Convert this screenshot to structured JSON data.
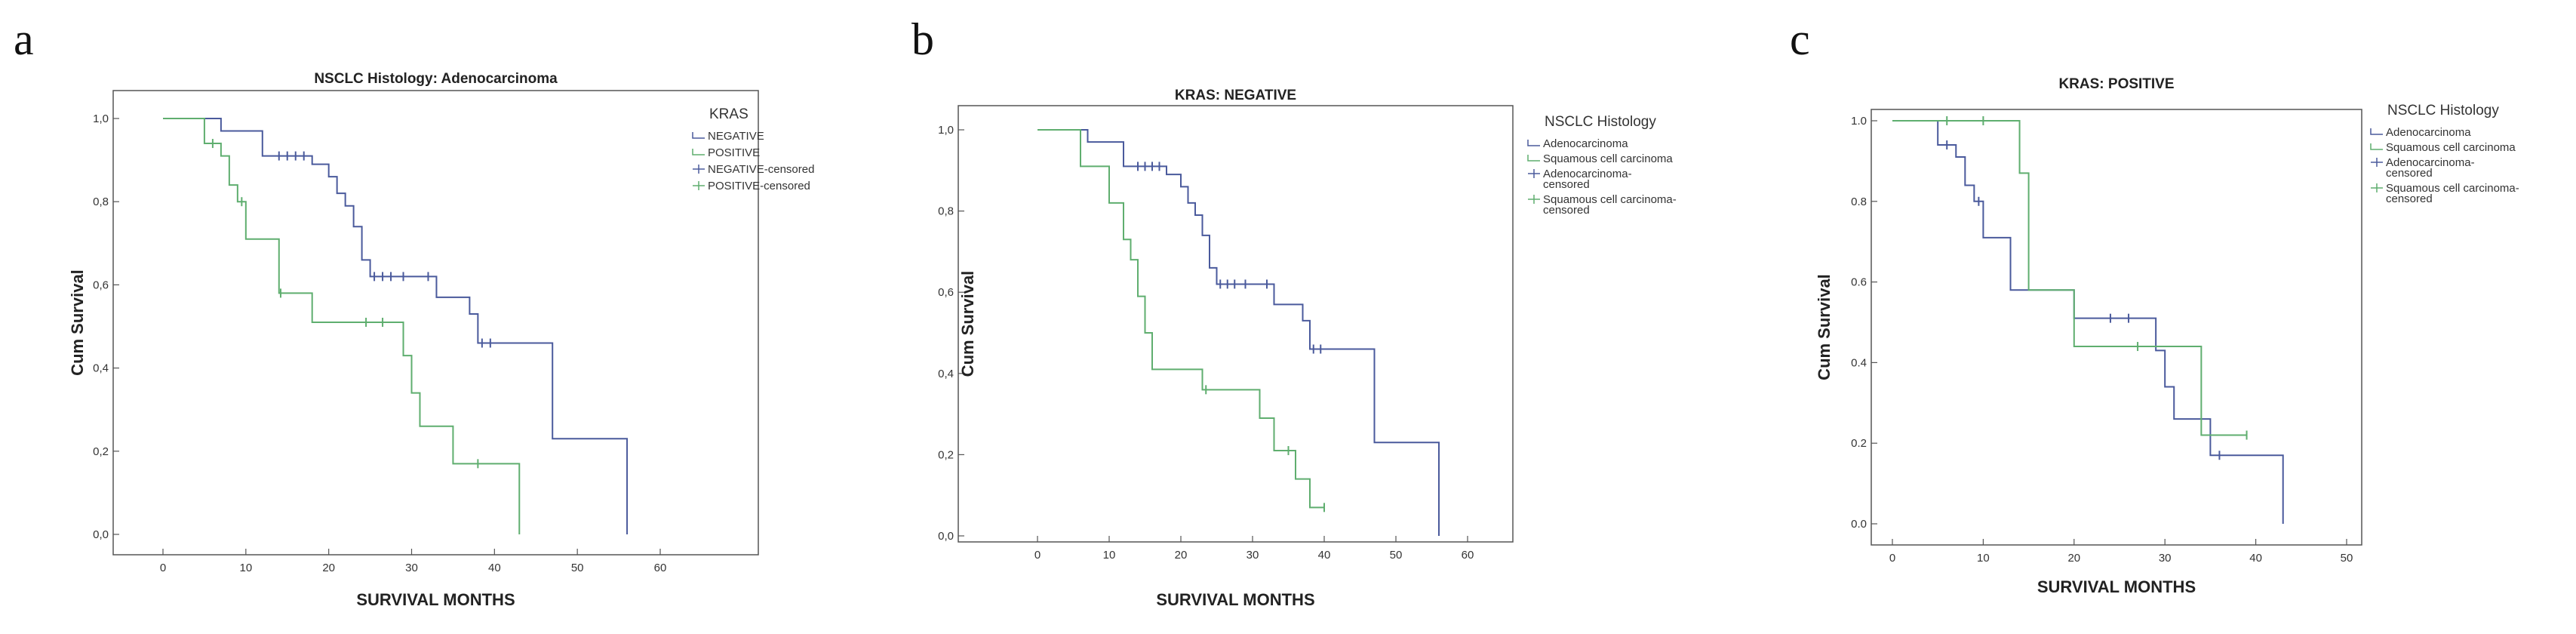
{
  "figure": {
    "panel_letters": [
      "a",
      "b",
      "c"
    ]
  },
  "colors": {
    "blue": "#4a5a9c",
    "green": "#5fae6f"
  },
  "chart_data": [
    {
      "type": "line",
      "title": "NSCLC Histology: Adenocarcinoma",
      "xlabel": "SURVIVAL MONTHS",
      "ylabel": "Cum Survival",
      "xlim": [
        0,
        60
      ],
      "ylim": [
        0,
        1
      ],
      "xticks": [
        "0",
        "10",
        "20",
        "30",
        "40",
        "50",
        "60"
      ],
      "yticks": [
        "0,0",
        "0,2",
        "0,4",
        "0,6",
        "0,8",
        "1,0"
      ],
      "legend_title": "KRAS",
      "legend_placement": "top-right",
      "legend_entries": [
        "NEGATIVE",
        "POSITIVE",
        "NEGATIVE-censored",
        "POSITIVE-censored"
      ],
      "series": [
        {
          "name": "NEGATIVE",
          "color": "blue",
          "steps": [
            [
              0,
              1.0
            ],
            [
              7,
              0.97
            ],
            [
              12,
              0.91
            ],
            [
              18,
              0.89
            ],
            [
              20,
              0.86
            ],
            [
              21,
              0.82
            ],
            [
              22,
              0.79
            ],
            [
              23,
              0.74
            ],
            [
              24,
              0.66
            ],
            [
              25,
              0.62
            ],
            [
              33,
              0.57
            ],
            [
              37,
              0.53
            ],
            [
              38,
              0.46
            ],
            [
              47,
              0.23
            ],
            [
              56,
              0.0
            ]
          ],
          "censored": [
            [
              14,
              0.91
            ],
            [
              15,
              0.91
            ],
            [
              16,
              0.91
            ],
            [
              17,
              0.91
            ],
            [
              25.5,
              0.62
            ],
            [
              26.5,
              0.62
            ],
            [
              27.5,
              0.62
            ],
            [
              29,
              0.62
            ],
            [
              32,
              0.62
            ],
            [
              38.5,
              0.46
            ],
            [
              39.5,
              0.46
            ]
          ]
        },
        {
          "name": "POSITIVE",
          "color": "green",
          "steps": [
            [
              0,
              1.0
            ],
            [
              5,
              0.94
            ],
            [
              7,
              0.91
            ],
            [
              8,
              0.84
            ],
            [
              9,
              0.8
            ],
            [
              10,
              0.71
            ],
            [
              14,
              0.58
            ],
            [
              18,
              0.51
            ],
            [
              24,
              0.51
            ],
            [
              29,
              0.43
            ],
            [
              30,
              0.34
            ],
            [
              31,
              0.26
            ],
            [
              35,
              0.17
            ],
            [
              38,
              0.17
            ],
            [
              43,
              0.0
            ]
          ],
          "censored": [
            [
              6,
              0.94
            ],
            [
              9.5,
              0.8
            ],
            [
              14.2,
              0.58
            ],
            [
              24.5,
              0.51
            ],
            [
              26.5,
              0.51
            ],
            [
              38,
              0.17
            ]
          ]
        }
      ]
    },
    {
      "type": "line",
      "title": "KRAS: NEGATIVE",
      "xlabel": "SURVIVAL MONTHS",
      "ylabel": "Cum Survival",
      "xlim": [
        0,
        60
      ],
      "ylim": [
        0,
        1
      ],
      "xticks": [
        "0",
        "10",
        "20",
        "30",
        "40",
        "50",
        "60"
      ],
      "yticks": [
        "0,0",
        "0,2",
        "0,4",
        "0,6",
        "0,8",
        "1,0"
      ],
      "legend_title": "NSCLC Histology",
      "legend_placement": "top-right",
      "legend_entries": [
        [
          "Adenocarcinoma"
        ],
        [
          "Squamous cell carcinoma"
        ],
        [
          "Adenocarcinoma-",
          "censored"
        ],
        [
          "Squamous cell carcinoma-",
          "censored"
        ]
      ],
      "series": [
        {
          "name": "Adenocarcinoma",
          "color": "blue",
          "steps": [
            [
              0,
              1.0
            ],
            [
              7,
              0.97
            ],
            [
              12,
              0.91
            ],
            [
              18,
              0.89
            ],
            [
              20,
              0.86
            ],
            [
              21,
              0.82
            ],
            [
              22,
              0.79
            ],
            [
              23,
              0.74
            ],
            [
              24,
              0.66
            ],
            [
              25,
              0.62
            ],
            [
              33,
              0.57
            ],
            [
              37,
              0.53
            ],
            [
              38,
              0.46
            ],
            [
              47,
              0.23
            ],
            [
              56,
              0.0
            ]
          ],
          "censored": [
            [
              14,
              0.91
            ],
            [
              15,
              0.91
            ],
            [
              16,
              0.91
            ],
            [
              17,
              0.91
            ],
            [
              25.5,
              0.62
            ],
            [
              26.5,
              0.62
            ],
            [
              27.5,
              0.62
            ],
            [
              29,
              0.62
            ],
            [
              32,
              0.62
            ],
            [
              38.5,
              0.46
            ],
            [
              39.5,
              0.46
            ]
          ]
        },
        {
          "name": "Squamous cell carcinoma",
          "color": "green",
          "steps": [
            [
              0,
              1.0
            ],
            [
              6,
              0.91
            ],
            [
              10,
              0.82
            ],
            [
              12,
              0.73
            ],
            [
              13,
              0.68
            ],
            [
              14,
              0.59
            ],
            [
              15,
              0.5
            ],
            [
              16,
              0.41
            ],
            [
              23,
              0.36
            ],
            [
              31,
              0.29
            ],
            [
              33,
              0.21
            ],
            [
              36,
              0.14
            ],
            [
              38,
              0.07
            ],
            [
              40,
              0.07
            ]
          ],
          "censored": [
            [
              23.5,
              0.36
            ],
            [
              35,
              0.21
            ],
            [
              40,
              0.07
            ]
          ]
        }
      ]
    },
    {
      "type": "line",
      "title": "KRAS: POSITIVE",
      "xlabel": "SURVIVAL MONTHS",
      "ylabel": "Cum Survival",
      "xlim": [
        0,
        50
      ],
      "ylim": [
        0,
        1
      ],
      "xticks": [
        "0",
        "10",
        "20",
        "30",
        "40",
        "50"
      ],
      "yticks": [
        "0.0",
        "0.2",
        "0.4",
        "0.6",
        "0.8",
        "1.0"
      ],
      "legend_title": "NSCLC Histology",
      "legend_placement": "top-right",
      "legend_entries": [
        [
          "Adenocarcinoma"
        ],
        [
          "Squamous cell carcinoma"
        ],
        [
          "Adenocarcinoma-",
          "censored"
        ],
        [
          "Squamous cell carcinoma-",
          "censored"
        ]
      ],
      "series": [
        {
          "name": "Adenocarcinoma",
          "color": "blue",
          "steps": [
            [
              0,
              1.0
            ],
            [
              5,
              0.94
            ],
            [
              7,
              0.91
            ],
            [
              8,
              0.84
            ],
            [
              9,
              0.8
            ],
            [
              10,
              0.71
            ],
            [
              13,
              0.58
            ],
            [
              20,
              0.51
            ],
            [
              29,
              0.43
            ],
            [
              30,
              0.34
            ],
            [
              31,
              0.26
            ],
            [
              35,
              0.17
            ],
            [
              43,
              0.0
            ]
          ],
          "censored": [
            [
              6,
              0.94
            ],
            [
              9.5,
              0.8
            ],
            [
              24,
              0.51
            ],
            [
              26,
              0.51
            ],
            [
              36,
              0.17
            ]
          ]
        },
        {
          "name": "Squamous cell carcinoma",
          "color": "green",
          "steps": [
            [
              0,
              1.0
            ],
            [
              14,
              0.87
            ],
            [
              15,
              0.58
            ],
            [
              20,
              0.44
            ],
            [
              34,
              0.22
            ],
            [
              39,
              0.22
            ]
          ],
          "censored": [
            [
              6,
              1.0
            ],
            [
              10,
              1.0
            ],
            [
              27,
              0.44
            ],
            [
              39,
              0.22
            ]
          ]
        }
      ]
    }
  ]
}
